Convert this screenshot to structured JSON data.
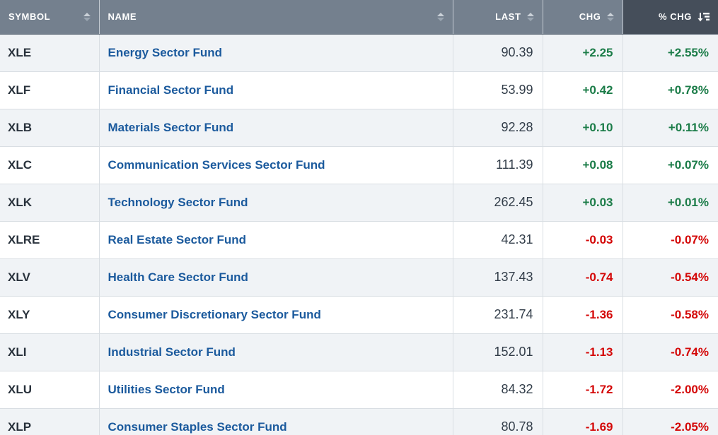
{
  "table": {
    "columns": [
      {
        "key": "symbol",
        "label": "SYMBOL",
        "align": "left",
        "sort_state": "sortable",
        "icon": "sort-both-icon"
      },
      {
        "key": "name",
        "label": "NAME",
        "align": "left",
        "sort_state": "sortable",
        "icon": "sort-both-icon"
      },
      {
        "key": "last",
        "label": "LAST",
        "align": "right",
        "sort_state": "sortable",
        "icon": "sort-both-icon"
      },
      {
        "key": "chg",
        "label": "CHG",
        "align": "right",
        "sort_state": "sortable",
        "icon": "sort-both-icon"
      },
      {
        "key": "pct_chg",
        "label": "% CHG",
        "align": "right",
        "sort_state": "sorted-descending",
        "icon": "sort-desc-icon"
      }
    ],
    "rows": [
      {
        "symbol": "XLE",
        "name": "Energy Sector Fund",
        "last": "90.39",
        "chg": "+2.25",
        "pct_chg": "+2.55%",
        "direction": "up"
      },
      {
        "symbol": "XLF",
        "name": "Financial Sector Fund",
        "last": "53.99",
        "chg": "+0.42",
        "pct_chg": "+0.78%",
        "direction": "up"
      },
      {
        "symbol": "XLB",
        "name": "Materials Sector Fund",
        "last": "92.28",
        "chg": "+0.10",
        "pct_chg": "+0.11%",
        "direction": "up"
      },
      {
        "symbol": "XLC",
        "name": "Communication Services Sector Fund",
        "last": "111.39",
        "chg": "+0.08",
        "pct_chg": "+0.07%",
        "direction": "up"
      },
      {
        "symbol": "XLK",
        "name": "Technology Sector Fund",
        "last": "262.45",
        "chg": "+0.03",
        "pct_chg": "+0.01%",
        "direction": "up"
      },
      {
        "symbol": "XLRE",
        "name": "Real Estate Sector Fund",
        "last": "42.31",
        "chg": "-0.03",
        "pct_chg": "-0.07%",
        "direction": "down"
      },
      {
        "symbol": "XLV",
        "name": "Health Care Sector Fund",
        "last": "137.43",
        "chg": "-0.74",
        "pct_chg": "-0.54%",
        "direction": "down"
      },
      {
        "symbol": "XLY",
        "name": "Consumer Discretionary Sector Fund",
        "last": "231.74",
        "chg": "-1.36",
        "pct_chg": "-0.58%",
        "direction": "down"
      },
      {
        "symbol": "XLI",
        "name": "Industrial Sector Fund",
        "last": "152.01",
        "chg": "-1.13",
        "pct_chg": "-0.74%",
        "direction": "down"
      },
      {
        "symbol": "XLU",
        "name": "Utilities Sector Fund",
        "last": "84.32",
        "chg": "-1.72",
        "pct_chg": "-2.00%",
        "direction": "down"
      },
      {
        "symbol": "XLP",
        "name": "Consumer Staples Sector Fund",
        "last": "80.78",
        "chg": "-1.69",
        "pct_chg": "-2.05%",
        "direction": "down"
      }
    ]
  },
  "colors": {
    "header_bg": "#74808e",
    "header_active_bg": "#454e5a",
    "header_text": "#ffffff",
    "row_alt_bg": "#f0f3f6",
    "border": "#d9dee3",
    "link_blue": "#1b5a9d",
    "symbol_text": "#28313b",
    "last_text": "#323d49",
    "positive_green": "#1b7c48",
    "negative_red": "#d40808"
  }
}
